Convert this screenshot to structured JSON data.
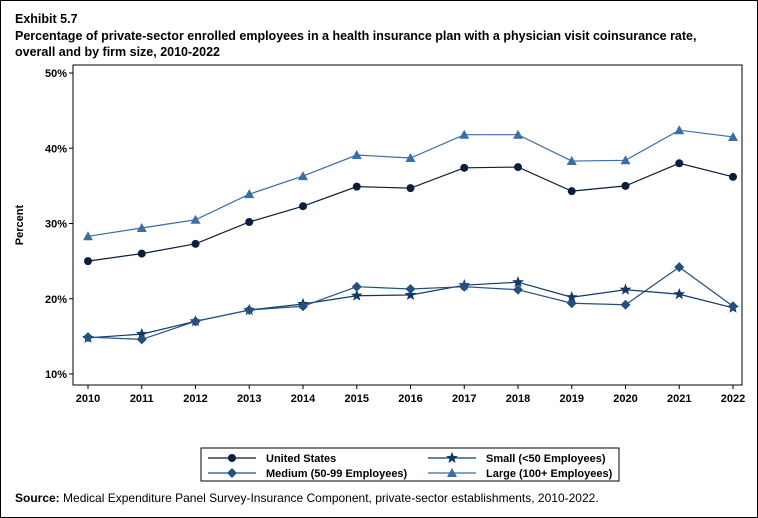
{
  "exhibit": "Exhibit 5.7",
  "source_label": "Source:",
  "source_text": "Medical Expenditure Panel Survey-Insurance Component, private-sector establishments, 2010-2022.",
  "chart_data": {
    "type": "line",
    "title": "Percentage of private-sector enrolled employees in a health insurance plan with a physician visit coinsurance rate, overall and by firm size, 2010-2022",
    "xlabel": "",
    "ylabel": "Percent",
    "ylim": [
      10,
      50
    ],
    "yticks": [
      10,
      20,
      30,
      40,
      50
    ],
    "ytick_labels": [
      "10%",
      "20%",
      "30%",
      "40%",
      "50%"
    ],
    "x": [
      "2010",
      "2011",
      "2012",
      "2013",
      "2014",
      "2015",
      "2016",
      "2017",
      "2018",
      "2019",
      "2020",
      "2021",
      "2022"
    ],
    "grid": false,
    "legend_position": "bottom",
    "series": [
      {
        "name": "United States",
        "marker": "circle",
        "color": "#0b1e3a",
        "values": [
          25.0,
          26.0,
          27.3,
          30.2,
          32.3,
          34.9,
          34.7,
          37.4,
          37.5,
          34.3,
          35.0,
          38.0,
          36.2
        ]
      },
      {
        "name": "Small (<50 Employees)",
        "marker": "star",
        "color": "#0e3a66",
        "values": [
          14.8,
          15.3,
          17.0,
          18.5,
          19.3,
          20.4,
          20.5,
          21.8,
          22.2,
          20.2,
          21.2,
          20.6,
          18.8
        ]
      },
      {
        "name": "Medium (50-99 Employees)",
        "marker": "diamond",
        "color": "#23507e",
        "values": [
          14.9,
          14.6,
          17.0,
          18.5,
          19.0,
          21.6,
          21.3,
          21.6,
          21.2,
          19.4,
          19.2,
          24.2,
          19.0
        ]
      },
      {
        "name": "Large (100+ Employees)",
        "marker": "triangle",
        "color": "#3a6ea5",
        "values": [
          28.3,
          29.4,
          30.5,
          33.9,
          36.3,
          39.1,
          38.7,
          41.8,
          41.8,
          38.3,
          38.4,
          42.4,
          41.5
        ]
      }
    ]
  }
}
